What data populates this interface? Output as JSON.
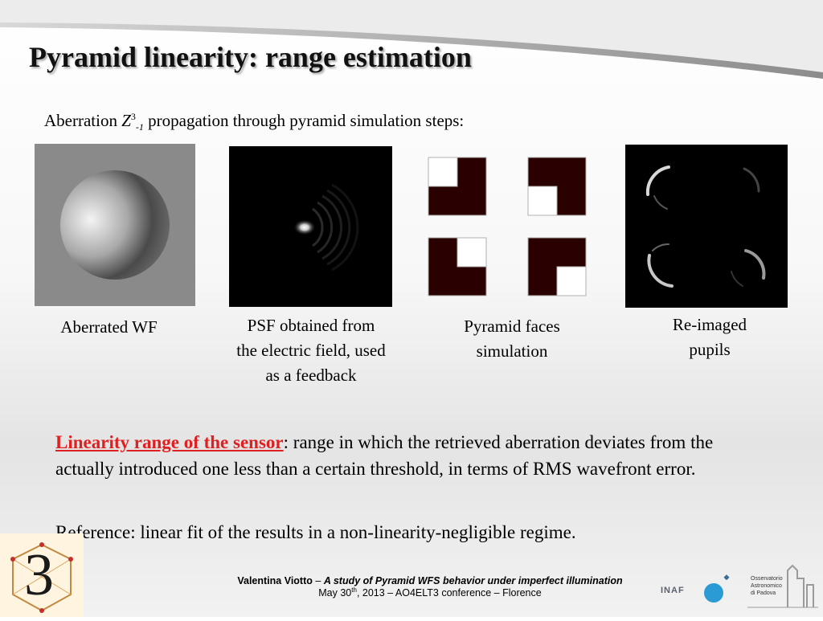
{
  "slide": {
    "title": "Pyramid linearity: range estimation",
    "intro": {
      "prefix": "Aberration ",
      "z_symbol": "Z",
      "z_sup": "3",
      "z_sub": "-1",
      "suffix": " propagation through pyramid simulation steps:"
    },
    "panels": [
      {
        "caption": "Aberrated WF"
      },
      {
        "caption_lines": [
          "PSF obtained from",
          "the electric field, used",
          "as a feedback"
        ]
      },
      {
        "caption_lines": [
          "Pyramid faces",
          "simulation"
        ]
      },
      {
        "caption_lines": [
          "Re-imaged",
          "pupils"
        ]
      }
    ],
    "definition": {
      "term": "Linearity range of the sensor",
      "separator": ": ",
      "text": "range in which the retrieved aberration deviates from the actually introduced one less than a certain threshold, in terms of RMS wavefront error."
    },
    "reference": "Reference: linear fit of the results in a non-linearity-negligible regime.",
    "footer": {
      "author": "Valentina Viotto",
      "dash": " – ",
      "talk_title": "A study of Pyramid WFS behavior under imperfect illumination",
      "date_prefix": "May 30",
      "date_sup": "th",
      "date_suffix": ", 2013 – AO4ELT3 conference – Florence"
    },
    "logos": {
      "ao4elt_digit": "3",
      "inaf": "INAF",
      "observatory_lines": [
        "Osservatorio",
        "Astronomico",
        "di Padova"
      ]
    }
  }
}
